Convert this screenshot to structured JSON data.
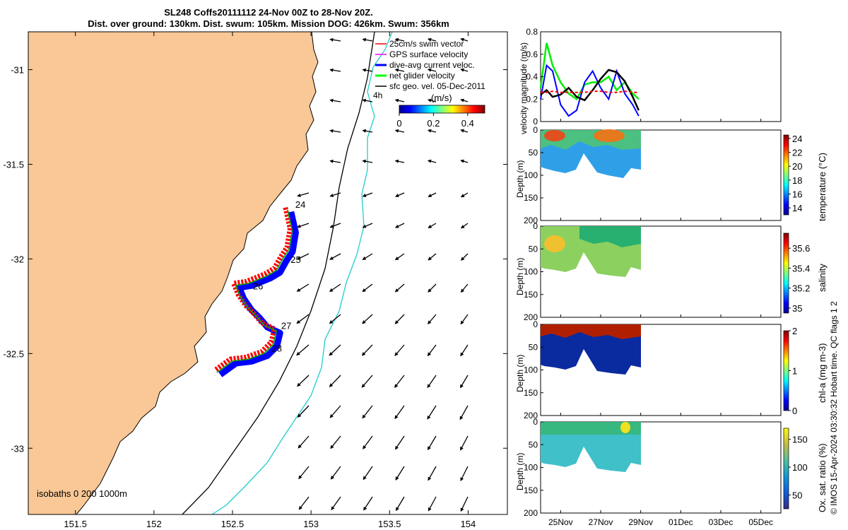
{
  "header": {
    "title_line1": "SL248 Coffs20111112 24-Nov 00Z to 28-Nov 20Z.",
    "title_line2": "Dist. over ground: 130km. Dist. swum: 105km. Mission DOG: 426km. Swum: 356km"
  },
  "map": {
    "x_ticks": [
      "151.5",
      "152",
      "152.5",
      "153",
      "153.5",
      "154"
    ],
    "x_tick_values": [
      151.5,
      152,
      152.5,
      153,
      153.5,
      154
    ],
    "y_ticks": [
      "-31",
      "-31.5",
      "-32",
      "-32.5",
      "-33"
    ],
    "y_tick_values": [
      -31,
      -31.5,
      -32,
      -32.5,
      -33
    ],
    "xlim": [
      151.2,
      154.25
    ],
    "ylim": [
      -33.35,
      -30.8
    ],
    "legend": [
      {
        "label": "25cm/s swim vector",
        "color": "#ff0000",
        "icon": "red-vector-icon"
      },
      {
        "label": "GPS surface velocity",
        "color": "#ff00ff",
        "icon": "magenta-vector-icon"
      },
      {
        "label": "dive-avg current veloc.",
        "color": "#0000ff",
        "icon": "blue-vector-icon"
      },
      {
        "label": "net glider velocity",
        "color": "#00ff00",
        "icon": "green-vector-icon"
      },
      {
        "label": "sfc geo. vel. 05-Dec-2011",
        "color": "#000000",
        "icon": "black-vector-icon"
      }
    ],
    "colorbar": {
      "label": "(m/s)",
      "ticks": [
        "0",
        "0.2",
        "0.4"
      ],
      "tick_values": [
        0,
        0.2,
        0.4
      ],
      "range": [
        0,
        0.5
      ]
    },
    "day_labels": [
      "24",
      "25",
      "26",
      "27",
      "28"
    ],
    "annotation_4h": "4h",
    "isobath_label": "isobaths  0  200  1000m",
    "land_color": "#f9c896"
  },
  "velocity_panel": {
    "ylabel": "velocity magnitude (m/s)",
    "y_ticks": [
      "0",
      "0.2",
      "0.4",
      "0.6",
      "0.8"
    ],
    "y_tick_values": [
      0,
      0.2,
      0.4,
      0.6,
      0.8
    ],
    "ylim": [
      0,
      0.8
    ]
  },
  "time_axis": {
    "labels": [
      "25Nov",
      "27Nov",
      "29Nov",
      "01Dec",
      "03Dec",
      "05Dec"
    ],
    "day_values": [
      1,
      3,
      5,
      7,
      9,
      11
    ],
    "range": [
      0,
      12
    ]
  },
  "sections": [
    {
      "ylabel": "Depth (m)",
      "cblabel": "temperature (°C)",
      "cb_ticks": [
        "14",
        "16",
        "18",
        "20",
        "22",
        "24"
      ],
      "cb_values": [
        14,
        16,
        18,
        20,
        22,
        24
      ],
      "cb_range": [
        13,
        24.5
      ]
    },
    {
      "ylabel": "Depth (m)",
      "cblabel": "salinity",
      "cb_ticks": [
        "35",
        "35.2",
        "35.4",
        "35.6"
      ],
      "cb_values": [
        35,
        35.2,
        35.4,
        35.6
      ],
      "cb_range": [
        34.95,
        35.75
      ]
    },
    {
      "ylabel": "Depth (m)",
      "cblabel": "chl-a (mg m-3)",
      "cb_ticks": [
        "0",
        "1",
        "2"
      ],
      "cb_values": [
        0,
        1,
        2
      ],
      "cb_range": [
        0,
        2
      ]
    },
    {
      "ylabel": "Depth (m)",
      "cblabel": "Ox. sat. ratio (%)",
      "cb_ticks": [
        "50",
        "100",
        "150"
      ],
      "cb_values": [
        50,
        100,
        150
      ],
      "cb_range": [
        25,
        170
      ]
    }
  ],
  "depth_ticks": [
    "0",
    "50",
    "100",
    "150",
    "200"
  ],
  "depth_tick_values": [
    0,
    50,
    100,
    150,
    200
  ],
  "copyright": "© IMOS 15-Apr-2024 03:30:32 Hobart time. QC flags 1 2",
  "chart_data": [
    {
      "type": "scatter",
      "title": "SL248 Coffs20111112 24-Nov 00Z to 28-Nov 20Z.",
      "xlim": [
        151.2,
        154.25
      ],
      "ylim": [
        -33.35,
        -30.8
      ],
      "glider_track": {
        "lon": [
          152.85,
          152.88,
          152.86,
          152.82,
          152.8,
          152.78,
          152.72,
          152.6,
          152.52,
          152.55,
          152.6,
          152.65,
          152.7,
          152.78,
          152.76,
          152.7,
          152.6,
          152.5,
          152.4
        ],
        "lat": [
          -31.74,
          -31.85,
          -31.95,
          -32.0,
          -32.03,
          -32.06,
          -32.09,
          -32.13,
          -32.14,
          -32.2,
          -32.26,
          -32.3,
          -32.35,
          -32.38,
          -32.45,
          -32.5,
          -32.53,
          -32.54,
          -32.6
        ]
      },
      "day_markers": [
        {
          "label": "24",
          "lon": 152.9,
          "lat": -31.73
        },
        {
          "label": "25",
          "lon": 152.87,
          "lat": -32.02
        },
        {
          "label": "26",
          "lon": 152.63,
          "lat": -32.16
        },
        {
          "label": "27",
          "lon": 152.81,
          "lat": -32.37
        },
        {
          "label": "28",
          "lon": 152.75,
          "lat": -32.49
        }
      ]
    },
    {
      "type": "line",
      "ylabel": "velocity magnitude (m/s)",
      "x_day": [
        0,
        0.3,
        0.6,
        1,
        1.4,
        1.8,
        2.2,
        2.6,
        3,
        3.4,
        3.8,
        4.2,
        4.6,
        4.9
      ],
      "series": [
        {
          "color": "#00ee00",
          "values": [
            0.3,
            0.7,
            0.5,
            0.35,
            0.25,
            0.2,
            0.33,
            0.35,
            0.35,
            0.4,
            0.28,
            0.35,
            0.25,
            0.2
          ]
        },
        {
          "color": "#0000ff",
          "values": [
            0.2,
            0.5,
            0.45,
            0.15,
            0.05,
            0.1,
            0.35,
            0.45,
            0.3,
            0.2,
            0.45,
            0.25,
            0.15,
            0.05
          ]
        },
        {
          "color": "#000000",
          "values": [
            0.24,
            0.28,
            0.22,
            0.24,
            0.3,
            0.22,
            0.19,
            0.28,
            0.38,
            0.46,
            0.44,
            0.36,
            0.22,
            0.1
          ]
        },
        {
          "color": "#ff0000",
          "values": [
            0.26,
            0.26,
            0.27,
            0.26,
            0.26,
            0.26,
            0.26,
            0.27,
            0.27,
            0.26,
            0.26,
            0.27,
            0.26,
            0.26
          ]
        }
      ]
    }
  ]
}
